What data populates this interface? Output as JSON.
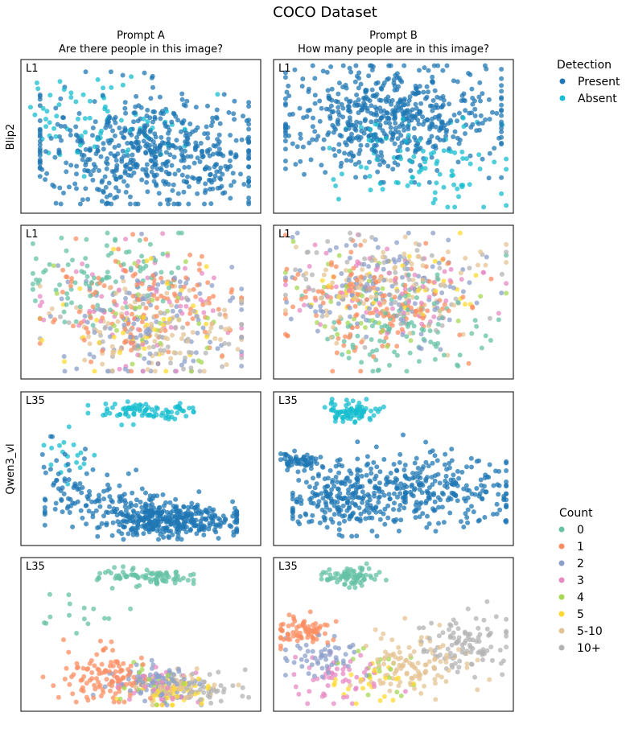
{
  "figure": {
    "title": "COCO Dataset",
    "columns": [
      {
        "line1": "Prompt A",
        "line2": "Are there people in this image?"
      },
      {
        "line1": "Prompt B",
        "line2": "How many people are in this image?"
      }
    ],
    "row_groups": [
      "Blip2",
      "Qwen3_vl"
    ]
  },
  "legends": {
    "detection": {
      "title": "Detection",
      "items": [
        {
          "label": "Present",
          "color": "#1f77b4"
        },
        {
          "label": "Absent",
          "color": "#17becf"
        }
      ]
    },
    "count": {
      "title": "Count",
      "items": [
        {
          "label": "0",
          "color": "#66c2a5"
        },
        {
          "label": "1",
          "color": "#fc8d62"
        },
        {
          "label": "2",
          "color": "#8da0cb"
        },
        {
          "label": "3",
          "color": "#e78ac3"
        },
        {
          "label": "4",
          "color": "#a6d854"
        },
        {
          "label": "5",
          "color": "#ffd92f"
        },
        {
          "label": "5-10",
          "color": "#e5c494"
        },
        {
          "label": "10+",
          "color": "#b3b3b3"
        }
      ]
    }
  },
  "chart_data": [
    {
      "type": "scatter",
      "model": "Blip2",
      "prompt": "Prompt A",
      "layer_label": "L1",
      "color_by": "Detection",
      "xlim": [
        0,
        100
      ],
      "ylim": [
        0,
        100
      ],
      "clusters": [
        {
          "label": "Present",
          "count": 560,
          "cx": 55,
          "cy": 40,
          "sx": 26,
          "sy": 19,
          "xr": [
            8,
            95
          ],
          "yr": [
            6,
            92
          ]
        },
        {
          "label": "Absent",
          "count": 70,
          "cx": 30,
          "cy": 64,
          "sx": 18,
          "sy": 13,
          "xr": [
            4,
            85
          ],
          "yr": [
            24,
            92
          ]
        }
      ]
    },
    {
      "type": "scatter",
      "model": "Blip2",
      "prompt": "Prompt B",
      "layer_label": "L1",
      "color_by": "Detection",
      "xlim": [
        0,
        100
      ],
      "ylim": [
        0,
        100
      ],
      "clusters": [
        {
          "label": "Present",
          "count": 560,
          "cx": 48,
          "cy": 62,
          "sx": 24,
          "sy": 17,
          "xr": [
            5,
            95
          ],
          "yr": [
            20,
            96
          ]
        },
        {
          "label": "Absent",
          "count": 95,
          "cx": 63,
          "cy": 32,
          "sx": 18,
          "sy": 17,
          "xr": [
            18,
            97
          ],
          "yr": [
            4,
            88
          ]
        }
      ]
    },
    {
      "type": "scatter",
      "model": "Blip2",
      "prompt": "Prompt A",
      "layer_label": "L1",
      "color_by": "Count",
      "xlim": [
        0,
        100
      ],
      "ylim": [
        0,
        100
      ],
      "clusters": [
        {
          "label": "0",
          "count": 90,
          "cx": 32,
          "cy": 66,
          "sx": 18,
          "sy": 13,
          "xr": [
            5,
            92
          ],
          "yr": [
            20,
            95
          ]
        },
        {
          "label": "1",
          "count": 130,
          "cx": 50,
          "cy": 50,
          "sx": 20,
          "sy": 17,
          "xr": [
            8,
            92
          ],
          "yr": [
            5,
            95
          ]
        },
        {
          "label": "2",
          "count": 120,
          "cx": 55,
          "cy": 42,
          "sx": 21,
          "sy": 18,
          "xr": [
            8,
            92
          ],
          "yr": [
            5,
            95
          ]
        },
        {
          "label": "3",
          "count": 60,
          "cx": 55,
          "cy": 45,
          "sx": 21,
          "sy": 18,
          "xr": [
            8,
            92
          ],
          "yr": [
            5,
            95
          ]
        },
        {
          "label": "4",
          "count": 35,
          "cx": 57,
          "cy": 40,
          "sx": 20,
          "sy": 18,
          "xr": [
            8,
            92
          ],
          "yr": [
            5,
            95
          ]
        },
        {
          "label": "5",
          "count": 35,
          "cx": 57,
          "cy": 38,
          "sx": 20,
          "sy": 17,
          "xr": [
            8,
            92
          ],
          "yr": [
            5,
            95
          ]
        },
        {
          "label": "5-10",
          "count": 90,
          "cx": 58,
          "cy": 32,
          "sx": 20,
          "sy": 15,
          "xr": [
            8,
            92
          ],
          "yr": [
            5,
            95
          ]
        },
        {
          "label": "10+",
          "count": 60,
          "cx": 56,
          "cy": 28,
          "sx": 20,
          "sy": 14,
          "xr": [
            8,
            92
          ],
          "yr": [
            5,
            95
          ]
        }
      ]
    },
    {
      "type": "scatter",
      "model": "Blip2",
      "prompt": "Prompt B",
      "layer_label": "L1",
      "color_by": "Count",
      "xlim": [
        0,
        100
      ],
      "ylim": [
        0,
        100
      ],
      "clusters": [
        {
          "label": "0",
          "count": 100,
          "cx": 56,
          "cy": 30,
          "sx": 18,
          "sy": 16,
          "xr": [
            5,
            97
          ],
          "yr": [
            5,
            95
          ]
        },
        {
          "label": "1",
          "count": 140,
          "cx": 42,
          "cy": 52,
          "sx": 20,
          "sy": 16,
          "xr": [
            5,
            97
          ],
          "yr": [
            5,
            95
          ]
        },
        {
          "label": "2",
          "count": 120,
          "cx": 48,
          "cy": 55,
          "sx": 22,
          "sy": 17,
          "xr": [
            5,
            97
          ],
          "yr": [
            5,
            95
          ]
        },
        {
          "label": "3",
          "count": 60,
          "cx": 50,
          "cy": 57,
          "sx": 22,
          "sy": 16,
          "xr": [
            5,
            97
          ],
          "yr": [
            5,
            95
          ]
        },
        {
          "label": "4",
          "count": 35,
          "cx": 45,
          "cy": 55,
          "sx": 22,
          "sy": 16,
          "xr": [
            5,
            97
          ],
          "yr": [
            5,
            95
          ]
        },
        {
          "label": "5",
          "count": 35,
          "cx": 50,
          "cy": 58,
          "sx": 20,
          "sy": 15,
          "xr": [
            5,
            97
          ],
          "yr": [
            5,
            95
          ]
        },
        {
          "label": "5-10",
          "count": 90,
          "cx": 50,
          "cy": 60,
          "sx": 22,
          "sy": 16,
          "xr": [
            5,
            97
          ],
          "yr": [
            5,
            95
          ]
        },
        {
          "label": "10+",
          "count": 70,
          "cx": 45,
          "cy": 62,
          "sx": 22,
          "sy": 15,
          "xr": [
            5,
            97
          ],
          "yr": [
            5,
            95
          ]
        }
      ]
    },
    {
      "type": "scatter",
      "model": "Qwen3_vl",
      "prompt": "Prompt A",
      "layer_label": "L35",
      "color_by": "Detection",
      "xlim": [
        0,
        100
      ],
      "ylim": [
        0,
        100
      ],
      "clusters": [
        {
          "label": "Absent",
          "count": 85,
          "cx": 52,
          "cy": 87,
          "sx": 11,
          "sy": 3,
          "xr": [
            28,
            72
          ],
          "yr": [
            78,
            96
          ]
        },
        {
          "label": "Absent",
          "count": 18,
          "cx": 20,
          "cy": 60,
          "sx": 10,
          "sy": 10,
          "xr": [
            3,
            92
          ],
          "yr": [
            40,
            80
          ]
        },
        {
          "label": "Present",
          "count": 360,
          "cx": 62,
          "cy": 17,
          "sx": 15,
          "sy": 6,
          "xr": [
            30,
            90
          ],
          "yr": [
            4,
            35
          ]
        },
        {
          "label": "Present",
          "count": 90,
          "cx": 30,
          "cy": 28,
          "sx": 12,
          "sy": 8,
          "xr": [
            10,
            55
          ],
          "yr": [
            12,
            50
          ]
        },
        {
          "label": "Present",
          "count": 25,
          "cx": 20,
          "cy": 48,
          "sx": 10,
          "sy": 10,
          "xr": [
            5,
            97
          ],
          "yr": [
            30,
            72
          ]
        }
      ]
    },
    {
      "type": "scatter",
      "model": "Qwen3_vl",
      "prompt": "Prompt B",
      "layer_label": "L35",
      "color_by": "Detection",
      "xlim": [
        0,
        100
      ],
      "ylim": [
        0,
        100
      ],
      "clusters": [
        {
          "label": "Absent",
          "count": 85,
          "cx": 32,
          "cy": 87,
          "sx": 6,
          "sy": 3,
          "xr": [
            20,
            50
          ],
          "yr": [
            78,
            96
          ]
        },
        {
          "label": "Present",
          "count": 55,
          "cx": 12,
          "cy": 55,
          "sx": 5,
          "sy": 3,
          "xr": [
            3,
            28
          ],
          "yr": [
            45,
            66
          ]
        },
        {
          "label": "Present",
          "count": 220,
          "cx": 28,
          "cy": 30,
          "sx": 12,
          "sy": 10,
          "xr": [
            8,
            55
          ],
          "yr": [
            6,
            56
          ]
        },
        {
          "label": "Present",
          "count": 270,
          "cx": 66,
          "cy": 38,
          "sx": 18,
          "sy": 12,
          "xr": [
            35,
            97
          ],
          "yr": [
            8,
            72
          ]
        }
      ]
    },
    {
      "type": "scatter",
      "model": "Qwen3_vl",
      "prompt": "Prompt A",
      "layer_label": "L35",
      "color_by": "Count",
      "xlim": [
        0,
        100
      ],
      "ylim": [
        0,
        100
      ],
      "clusters": [
        {
          "label": "0",
          "count": 85,
          "cx": 52,
          "cy": 87,
          "sx": 11,
          "sy": 3,
          "xr": [
            28,
            72
          ],
          "yr": [
            78,
            96
          ]
        },
        {
          "label": "0",
          "count": 15,
          "cx": 20,
          "cy": 65,
          "sx": 10,
          "sy": 10,
          "xr": [
            3,
            92
          ],
          "yr": [
            45,
            80
          ]
        },
        {
          "label": "1",
          "count": 110,
          "cx": 35,
          "cy": 24,
          "sx": 10,
          "sy": 9,
          "xr": [
            8,
            95
          ],
          "yr": [
            6,
            70
          ]
        },
        {
          "label": "2",
          "count": 90,
          "cx": 55,
          "cy": 18,
          "sx": 9,
          "sy": 7,
          "xr": [
            25,
            90
          ],
          "yr": [
            4,
            40
          ]
        },
        {
          "label": "3",
          "count": 40,
          "cx": 56,
          "cy": 16,
          "sx": 9,
          "sy": 6,
          "xr": [
            30,
            85
          ],
          "yr": [
            4,
            40
          ]
        },
        {
          "label": "4",
          "count": 25,
          "cx": 57,
          "cy": 17,
          "sx": 9,
          "sy": 6,
          "xr": [
            30,
            85
          ],
          "yr": [
            4,
            40
          ]
        },
        {
          "label": "5",
          "count": 45,
          "cx": 63,
          "cy": 14,
          "sx": 7,
          "sy": 5,
          "xr": [
            40,
            85
          ],
          "yr": [
            4,
            35
          ]
        },
        {
          "label": "5-10",
          "count": 60,
          "cx": 66,
          "cy": 15,
          "sx": 8,
          "sy": 5,
          "xr": [
            40,
            95
          ],
          "yr": [
            4,
            35
          ]
        },
        {
          "label": "10+",
          "count": 55,
          "cx": 75,
          "cy": 15,
          "sx": 8,
          "sy": 5,
          "xr": [
            45,
            95
          ],
          "yr": [
            4,
            35
          ]
        }
      ]
    },
    {
      "type": "scatter",
      "model": "Qwen3_vl",
      "prompt": "Prompt B",
      "layer_label": "L35",
      "color_by": "Count",
      "xlim": [
        0,
        100
      ],
      "ylim": [
        0,
        100
      ],
      "clusters": [
        {
          "label": "0",
          "count": 80,
          "cx": 32,
          "cy": 87,
          "sx": 6,
          "sy": 3,
          "xr": [
            20,
            50
          ],
          "yr": [
            78,
            96
          ]
        },
        {
          "label": "1",
          "count": 75,
          "cx": 12,
          "cy": 52,
          "sx": 6,
          "sy": 5,
          "xr": [
            3,
            30
          ],
          "yr": [
            40,
            68
          ]
        },
        {
          "label": "2",
          "count": 55,
          "cx": 20,
          "cy": 35,
          "sx": 8,
          "sy": 7,
          "xr": [
            5,
            45
          ],
          "yr": [
            15,
            60
          ]
        },
        {
          "label": "3",
          "count": 50,
          "cx": 28,
          "cy": 22,
          "sx": 10,
          "sy": 8,
          "xr": [
            8,
            55
          ],
          "yr": [
            5,
            50
          ]
        },
        {
          "label": "4",
          "count": 20,
          "cx": 42,
          "cy": 28,
          "sx": 10,
          "sy": 9,
          "xr": [
            15,
            70
          ],
          "yr": [
            8,
            55
          ]
        },
        {
          "label": "5",
          "count": 25,
          "cx": 42,
          "cy": 18,
          "sx": 9,
          "sy": 7,
          "xr": [
            20,
            65
          ],
          "yr": [
            5,
            40
          ]
        },
        {
          "label": "5-10",
          "count": 110,
          "cx": 58,
          "cy": 30,
          "sx": 12,
          "sy": 10,
          "xr": [
            30,
            90
          ],
          "yr": [
            5,
            65
          ]
        },
        {
          "label": "10+",
          "count": 100,
          "cx": 80,
          "cy": 45,
          "sx": 9,
          "sy": 10,
          "xr": [
            55,
            97
          ],
          "yr": [
            20,
            72
          ]
        }
      ]
    }
  ]
}
